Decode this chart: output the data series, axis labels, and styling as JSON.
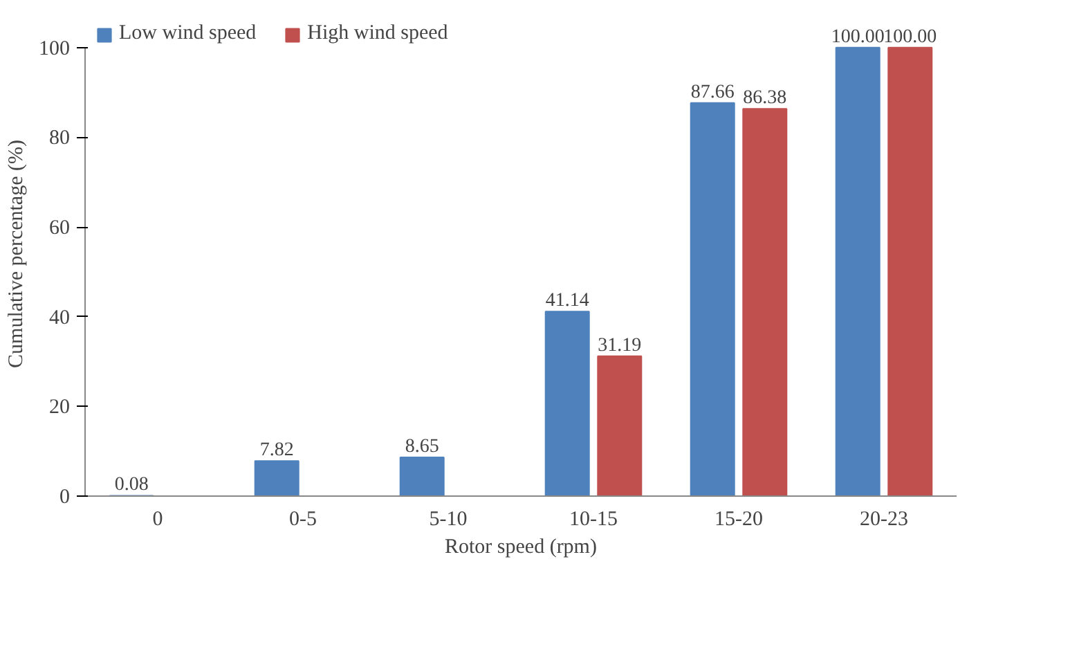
{
  "chart_data": {
    "type": "bar",
    "xlabel": "Rotor speed (rpm)",
    "ylabel": "Cumulative percentage (%)",
    "categories": [
      "0",
      "0-5",
      "5-10",
      "10-15",
      "15-20",
      "20-23"
    ],
    "series": [
      {
        "name": "Low wind speed",
        "color": "#4f81bd",
        "values": [
          0.08,
          7.82,
          8.65,
          41.14,
          87.66,
          100.0
        ],
        "value_labels": [
          "0.08",
          "7.82",
          "8.65",
          "41.14",
          "87.66",
          "100.00"
        ]
      },
      {
        "name": "High wind speed",
        "color": "#c0504d",
        "values": [
          null,
          null,
          null,
          31.19,
          86.38,
          100.0
        ],
        "value_labels": [
          null,
          null,
          null,
          "31.19",
          "86.38",
          "100.00"
        ]
      }
    ],
    "ylim": [
      0,
      100
    ],
    "yticks": [
      0,
      20,
      40,
      60,
      80,
      100
    ],
    "grid": false,
    "legend": "top left"
  }
}
